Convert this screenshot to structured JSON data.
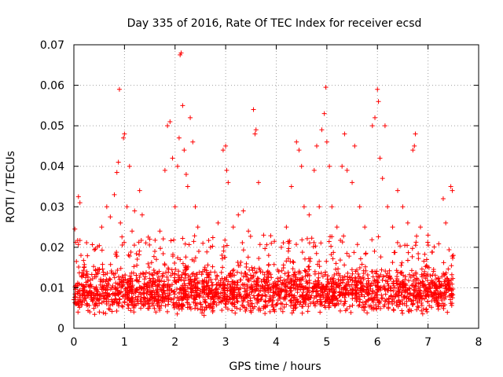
{
  "chart_data": {
    "type": "scatter",
    "title": "Day 335 of 2016, Rate Of TEC Index for receiver ecsd",
    "xlabel": "GPS time / hours",
    "ylabel": "ROTI / TECUs",
    "xlim": [
      0,
      8
    ],
    "ylim": [
      0,
      0.07
    ],
    "x_ticks": [
      0,
      1,
      2,
      3,
      4,
      5,
      6,
      7,
      8
    ],
    "y_ticks": [
      0,
      0.01,
      0.02,
      0.03,
      0.04,
      0.05,
      0.06,
      0.07
    ],
    "x_tick_labels": [
      "0",
      "1",
      "2",
      "3",
      "4",
      "5",
      "6",
      "7",
      "8"
    ],
    "y_tick_labels": [
      "0",
      "0.01",
      "0.02",
      "0.03",
      "0.04",
      "0.05",
      "0.06",
      "0.07"
    ],
    "grid": true,
    "marker": "+",
    "color": "#ff0000",
    "series": [
      {
        "name": "ROTI",
        "points": [
          [
            0.02,
            0.0245
          ],
          [
            0.05,
            0.0165
          ],
          [
            0.09,
            0.0325
          ],
          [
            0.12,
            0.031
          ],
          [
            0.14,
            0.018
          ],
          [
            0.2,
            0.015
          ],
          [
            0.55,
            0.025
          ],
          [
            0.65,
            0.03
          ],
          [
            0.72,
            0.0275
          ],
          [
            0.8,
            0.033
          ],
          [
            0.85,
            0.0385
          ],
          [
            0.88,
            0.041
          ],
          [
            0.9,
            0.059
          ],
          [
            0.92,
            0.026
          ],
          [
            0.98,
            0.047
          ],
          [
            1.0,
            0.048
          ],
          [
            1.05,
            0.03
          ],
          [
            1.1,
            0.04
          ],
          [
            1.15,
            0.024
          ],
          [
            1.2,
            0.029
          ],
          [
            1.3,
            0.034
          ],
          [
            1.35,
            0.028
          ],
          [
            1.5,
            0.022
          ],
          [
            1.6,
            0.019
          ],
          [
            1.7,
            0.024
          ],
          [
            1.8,
            0.039
          ],
          [
            1.85,
            0.05
          ],
          [
            1.9,
            0.051
          ],
          [
            1.95,
            0.042
          ],
          [
            2.0,
            0.03
          ],
          [
            2.05,
            0.04
          ],
          [
            2.08,
            0.047
          ],
          [
            2.1,
            0.0675
          ],
          [
            2.12,
            0.068
          ],
          [
            2.15,
            0.055
          ],
          [
            2.18,
            0.044
          ],
          [
            2.22,
            0.038
          ],
          [
            2.25,
            0.035
          ],
          [
            2.3,
            0.052
          ],
          [
            2.35,
            0.046
          ],
          [
            2.4,
            0.03
          ],
          [
            2.45,
            0.025
          ],
          [
            2.55,
            0.021
          ],
          [
            2.7,
            0.02
          ],
          [
            2.85,
            0.026
          ],
          [
            2.95,
            0.044
          ],
          [
            3.0,
            0.045
          ],
          [
            3.02,
            0.039
          ],
          [
            3.05,
            0.036
          ],
          [
            3.15,
            0.025
          ],
          [
            3.25,
            0.028
          ],
          [
            3.35,
            0.029
          ],
          [
            3.45,
            0.024
          ],
          [
            3.55,
            0.054
          ],
          [
            3.58,
            0.048
          ],
          [
            3.6,
            0.049
          ],
          [
            3.65,
            0.036
          ],
          [
            3.75,
            0.023
          ],
          [
            3.85,
            0.018
          ],
          [
            4.1,
            0.02
          ],
          [
            4.2,
            0.025
          ],
          [
            4.3,
            0.035
          ],
          [
            4.4,
            0.046
          ],
          [
            4.45,
            0.044
          ],
          [
            4.5,
            0.04
          ],
          [
            4.55,
            0.03
          ],
          [
            4.65,
            0.028
          ],
          [
            4.75,
            0.039
          ],
          [
            4.8,
            0.045
          ],
          [
            4.85,
            0.03
          ],
          [
            4.9,
            0.049
          ],
          [
            4.95,
            0.053
          ],
          [
            4.98,
            0.0595
          ],
          [
            5.0,
            0.046
          ],
          [
            5.05,
            0.04
          ],
          [
            5.1,
            0.03
          ],
          [
            5.2,
            0.025
          ],
          [
            5.3,
            0.04
          ],
          [
            5.35,
            0.048
          ],
          [
            5.4,
            0.039
          ],
          [
            5.5,
            0.036
          ],
          [
            5.55,
            0.045
          ],
          [
            5.65,
            0.03
          ],
          [
            5.75,
            0.025
          ],
          [
            5.9,
            0.05
          ],
          [
            5.95,
            0.052
          ],
          [
            6.0,
            0.059
          ],
          [
            6.02,
            0.056
          ],
          [
            6.05,
            0.042
          ],
          [
            6.1,
            0.037
          ],
          [
            6.15,
            0.05
          ],
          [
            6.2,
            0.03
          ],
          [
            6.3,
            0.025
          ],
          [
            6.4,
            0.034
          ],
          [
            6.5,
            0.03
          ],
          [
            6.6,
            0.026
          ],
          [
            6.7,
            0.044
          ],
          [
            6.73,
            0.045
          ],
          [
            6.75,
            0.048
          ],
          [
            6.85,
            0.025
          ],
          [
            7.0,
            0.023
          ],
          [
            7.3,
            0.032
          ],
          [
            7.35,
            0.026
          ],
          [
            7.45,
            0.035
          ],
          [
            7.48,
            0.034
          ],
          [
            7.5,
            0.018
          ]
        ],
        "baseline_band": {
          "x_range": [
            0,
            7.5
          ],
          "y_range": [
            0.003,
            0.018
          ],
          "typical": 0.009,
          "approx_count": 2400
        }
      }
    ]
  }
}
